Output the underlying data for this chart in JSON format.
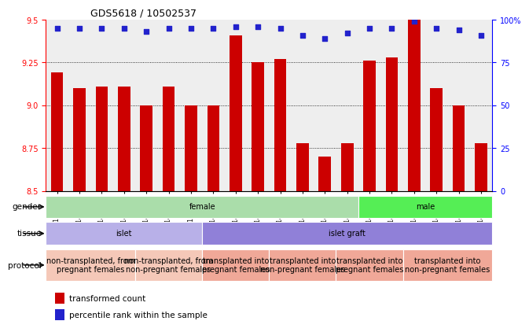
{
  "title": "GDS5618 / 10502537",
  "samples": [
    "GSM1429382",
    "GSM1429383",
    "GSM1429384",
    "GSM1429385",
    "GSM1429386",
    "GSM1429387",
    "GSM1429388",
    "GSM1429389",
    "GSM1429390",
    "GSM1429391",
    "GSM1429392",
    "GSM1429396",
    "GSM1429397",
    "GSM1429398",
    "GSM1429393",
    "GSM1429394",
    "GSM1429395",
    "GSM1429399",
    "GSM1429400",
    "GSM1429401"
  ],
  "transformed_count": [
    9.19,
    9.1,
    9.11,
    9.11,
    9.0,
    9.11,
    9.0,
    9.0,
    9.41,
    9.25,
    9.27,
    8.78,
    8.7,
    8.78,
    9.26,
    9.28,
    9.5,
    9.1,
    9.0,
    8.78
  ],
  "percentile_values": [
    95,
    95,
    95,
    95,
    93,
    95,
    95,
    95,
    96,
    96,
    95,
    91,
    89,
    92,
    95,
    95,
    99,
    95,
    94,
    91
  ],
  "ylim": [
    8.5,
    9.5
  ],
  "yticks": [
    8.5,
    8.75,
    9.0,
    9.25,
    9.5
  ],
  "bar_color": "#cc0000",
  "dot_color": "#2222cc",
  "gender_data": [
    {
      "label": "female",
      "start": 0,
      "end": 14,
      "color": "#aaddaa"
    },
    {
      "label": "male",
      "start": 14,
      "end": 20,
      "color": "#55ee55"
    }
  ],
  "tissue_data": [
    {
      "label": "islet",
      "start": 0,
      "end": 7,
      "color": "#b8b0e8"
    },
    {
      "label": "islet graft",
      "start": 7,
      "end": 20,
      "color": "#9080d8"
    }
  ],
  "protocol_data": [
    {
      "label": "non-transplanted, from\npregnant females",
      "start": 0,
      "end": 4,
      "color": "#f5c8b8"
    },
    {
      "label": "non-transplanted, from\nnon-pregnant females",
      "start": 4,
      "end": 7,
      "color": "#f5c8b8"
    },
    {
      "label": "transplanted into\npregnant females",
      "start": 7,
      "end": 10,
      "color": "#f0a898"
    },
    {
      "label": "transplanted into\nnon-pregnant females",
      "start": 10,
      "end": 13,
      "color": "#f0a898"
    },
    {
      "label": "transplanted into\npregnant females",
      "start": 13,
      "end": 16,
      "color": "#f0a898"
    },
    {
      "label": "transplanted into\nnon-pregnant females",
      "start": 16,
      "end": 20,
      "color": "#f0a898"
    }
  ],
  "row_labels": [
    "gender",
    "tissue",
    "protocol"
  ]
}
